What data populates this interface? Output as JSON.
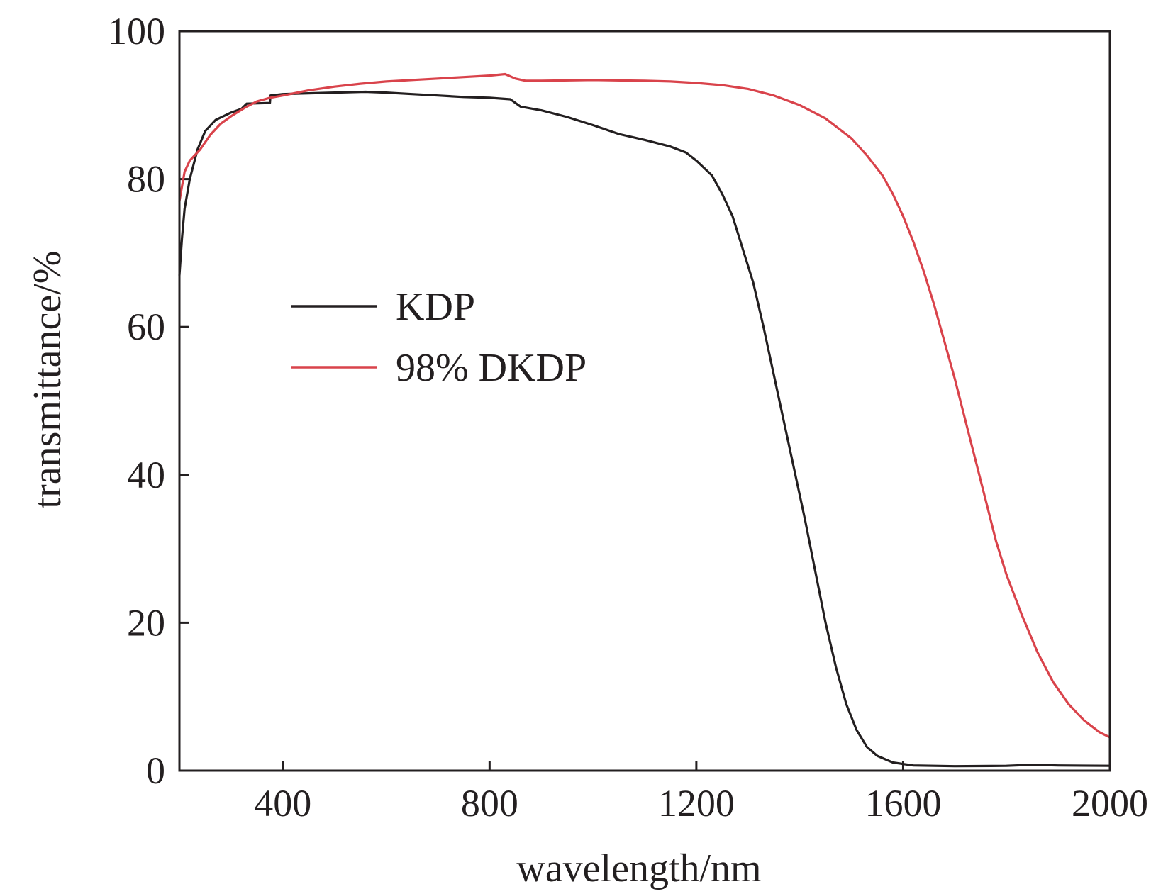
{
  "chart_data": {
    "type": "line",
    "title": "",
    "xlabel": "wavelength/nm",
    "ylabel": "transmittance/%",
    "xlim": [
      200,
      2000
    ],
    "ylim": [
      0,
      100
    ],
    "xticks": [
      400,
      800,
      1200,
      1600,
      2000
    ],
    "yticks": [
      0,
      20,
      40,
      60,
      80,
      100
    ],
    "legend": {
      "placement": "upper-left-center"
    },
    "series": [
      {
        "name": "KDP",
        "color": "#231f20",
        "points": [
          [
            200,
            67
          ],
          [
            205,
            72
          ],
          [
            210,
            76
          ],
          [
            220,
            80
          ],
          [
            235,
            84
          ],
          [
            250,
            86.5
          ],
          [
            270,
            88
          ],
          [
            300,
            89
          ],
          [
            320,
            89.5
          ],
          [
            330,
            90.2
          ],
          [
            375,
            90.3
          ],
          [
            376,
            91.3
          ],
          [
            400,
            91.5
          ],
          [
            450,
            91.6
          ],
          [
            500,
            91.7
          ],
          [
            560,
            91.8
          ],
          [
            600,
            91.7
          ],
          [
            650,
            91.5
          ],
          [
            700,
            91.3
          ],
          [
            750,
            91.1
          ],
          [
            800,
            91.0
          ],
          [
            840,
            90.8
          ],
          [
            860,
            89.8
          ],
          [
            900,
            89.3
          ],
          [
            950,
            88.4
          ],
          [
            1000,
            87.3
          ],
          [
            1050,
            86.1
          ],
          [
            1100,
            85.3
          ],
          [
            1150,
            84.4
          ],
          [
            1180,
            83.6
          ],
          [
            1200,
            82.5
          ],
          [
            1230,
            80.5
          ],
          [
            1250,
            78
          ],
          [
            1270,
            75
          ],
          [
            1290,
            70.5
          ],
          [
            1310,
            66
          ],
          [
            1330,
            60
          ],
          [
            1350,
            53.5
          ],
          [
            1370,
            47
          ],
          [
            1390,
            40.5
          ],
          [
            1410,
            34
          ],
          [
            1430,
            27
          ],
          [
            1450,
            20
          ],
          [
            1470,
            14
          ],
          [
            1490,
            9
          ],
          [
            1510,
            5.5
          ],
          [
            1530,
            3.2
          ],
          [
            1550,
            2
          ],
          [
            1580,
            1.1
          ],
          [
            1620,
            0.7
          ],
          [
            1700,
            0.6
          ],
          [
            1800,
            0.65
          ],
          [
            1850,
            0.8
          ],
          [
            1900,
            0.7
          ],
          [
            2000,
            0.65
          ]
        ]
      },
      {
        "name": "98% DKDP",
        "color": "#d9434b",
        "points": [
          [
            200,
            77
          ],
          [
            205,
            79
          ],
          [
            210,
            81
          ],
          [
            220,
            82.5
          ],
          [
            240,
            84
          ],
          [
            260,
            86
          ],
          [
            280,
            87.5
          ],
          [
            300,
            88.5
          ],
          [
            330,
            89.8
          ],
          [
            350,
            90.5
          ],
          [
            375,
            91.0
          ],
          [
            400,
            91.3
          ],
          [
            450,
            92
          ],
          [
            500,
            92.5
          ],
          [
            550,
            92.9
          ],
          [
            600,
            93.2
          ],
          [
            650,
            93.4
          ],
          [
            700,
            93.6
          ],
          [
            750,
            93.8
          ],
          [
            800,
            94.0
          ],
          [
            830,
            94.2
          ],
          [
            850,
            93.6
          ],
          [
            870,
            93.3
          ],
          [
            900,
            93.3
          ],
          [
            1000,
            93.4
          ],
          [
            1100,
            93.3
          ],
          [
            1150,
            93.2
          ],
          [
            1200,
            93.0
          ],
          [
            1250,
            92.7
          ],
          [
            1300,
            92.2
          ],
          [
            1350,
            91.3
          ],
          [
            1400,
            90.0
          ],
          [
            1450,
            88.2
          ],
          [
            1500,
            85.5
          ],
          [
            1530,
            83.2
          ],
          [
            1560,
            80.5
          ],
          [
            1580,
            78
          ],
          [
            1600,
            75
          ],
          [
            1620,
            71.5
          ],
          [
            1640,
            67.5
          ],
          [
            1660,
            63
          ],
          [
            1680,
            58
          ],
          [
            1700,
            53
          ],
          [
            1720,
            47.5
          ],
          [
            1740,
            42
          ],
          [
            1760,
            36.5
          ],
          [
            1780,
            31
          ],
          [
            1800,
            26.5
          ],
          [
            1830,
            21
          ],
          [
            1860,
            16
          ],
          [
            1890,
            12
          ],
          [
            1920,
            9
          ],
          [
            1950,
            6.8
          ],
          [
            1980,
            5.2
          ],
          [
            2000,
            4.5
          ]
        ]
      }
    ]
  }
}
